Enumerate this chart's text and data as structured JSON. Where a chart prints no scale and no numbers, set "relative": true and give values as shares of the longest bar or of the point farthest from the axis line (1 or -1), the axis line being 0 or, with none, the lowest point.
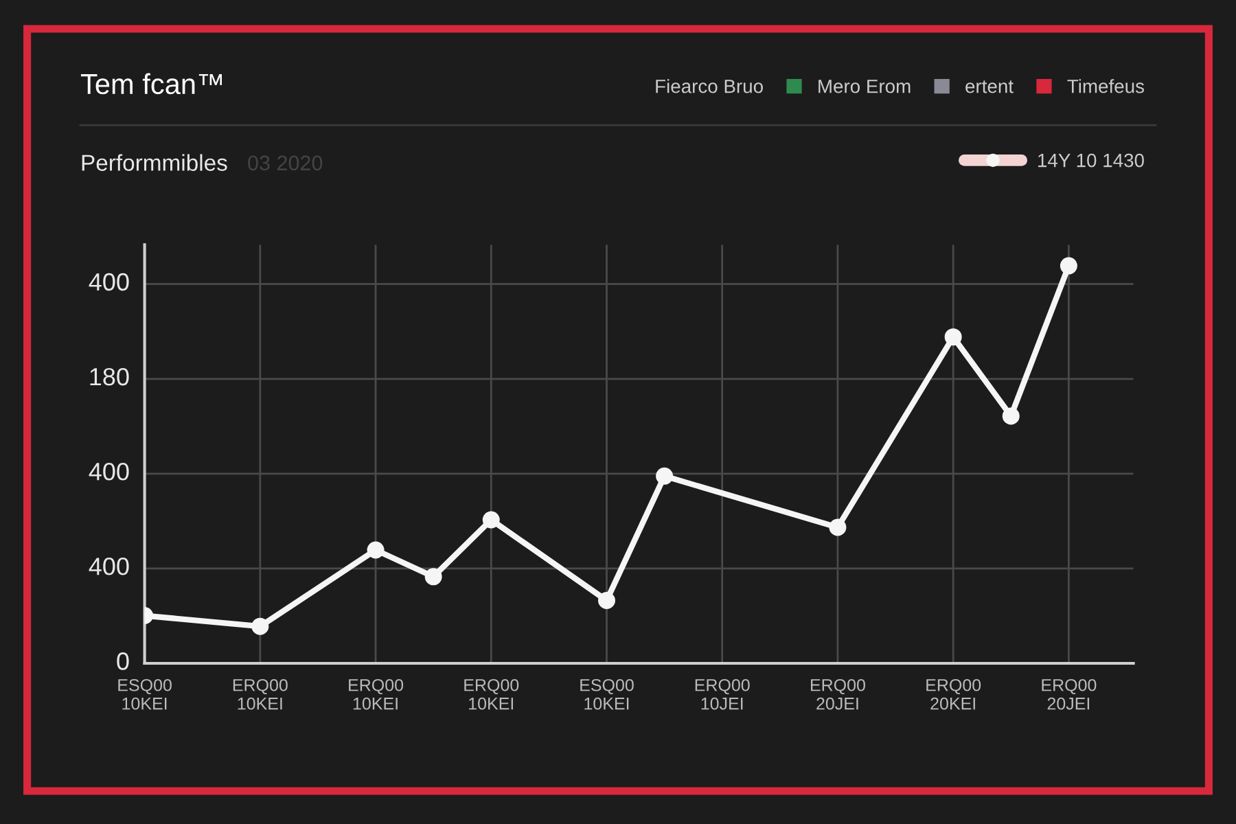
{
  "chart_data": {
    "type": "line",
    "title": "Tem fcan™",
    "subtitle": "Performmibles",
    "annotations": [
      "03 2020",
      "0",
      "400",
      "400",
      "180",
      "400"
    ],
    "legend_title": "Fiearco Bruo",
    "categories": [
      "ESQ00\n10KEI",
      null,
      "ERQ00\n10KEI",
      null,
      "ERQ00\n10KEI",
      null,
      "ERQ00\n10KEI",
      null,
      "ESQ00\n10KEI",
      null,
      "ERQ00\n10JEI",
      null,
      "ERQ00\n20JEI",
      null,
      "ERQ00\n20KEI",
      null,
      "ERQ00\n20JEI"
    ],
    "relative": true,
    "series": [
      {
        "name": "14Y 10 1430",
        "color": "#f5f5f5",
        "values": [
          0.12,
          null,
          0.093,
          null,
          0.285,
          0.218,
          0.361,
          null,
          0.158,
          0.471,
          null,
          null,
          0.342,
          null,
          0.821,
          0.622,
          1
        ]
      },
      {
        "name": "Mero Erom",
        "color": "#2e8b4e",
        "values": [
          null,
          null,
          null,
          null,
          null,
          null,
          null,
          null,
          null,
          null,
          null,
          null,
          null,
          null,
          null,
          null,
          null
        ]
      },
      {
        "name": "ertent",
        "color": "#8a8a96",
        "values": [
          null,
          null,
          null,
          null,
          null,
          null,
          null,
          null,
          null,
          null,
          null,
          null,
          null,
          null,
          null,
          null,
          null
        ]
      },
      {
        "name": "Timefeus",
        "color": "#d8283c",
        "values": [
          null,
          null,
          null,
          null,
          null,
          null,
          null,
          null,
          null,
          null,
          null,
          null,
          null,
          null,
          null,
          null,
          null
        ]
      }
    ],
    "marker": "circle",
    "line_style": "solid",
    "grid": true,
    "legend": "top right"
  }
}
